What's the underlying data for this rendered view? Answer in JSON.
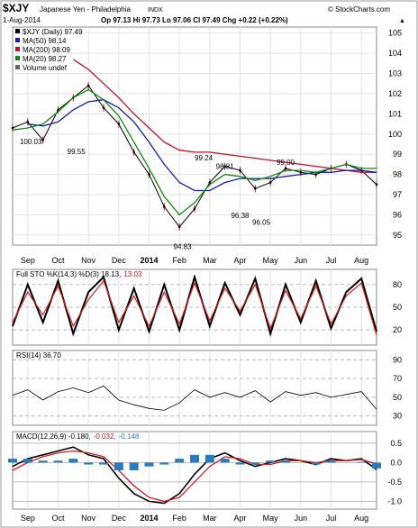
{
  "header": {
    "symbol": "$XJY",
    "name": "Japanese Yen - Philadelphia",
    "exchange": "INDX",
    "watermark": "© StockCharts.com",
    "date": "1-Aug-2014",
    "ohlc": "Op 97.13  Hi 97.73  Lo 97.06  Cl 97.49  Chg +0.22 (+0.22%)",
    "chg_up_symbol": "▲"
  },
  "price_panel": {
    "legend": [
      {
        "label": "$XJY (Daily) 97.49",
        "color": "#000000"
      },
      {
        "label": "MA(50) 98.14",
        "color": "#1a1ab0"
      },
      {
        "label": "MA(200) 98.09",
        "color": "#c0102a"
      },
      {
        "label": "MA(20) 98.27",
        "color": "#118a11"
      },
      {
        "label": "Volume undef",
        "color": "#666666"
      }
    ],
    "annotations": [
      {
        "label": "100.03",
        "x": 0.6,
        "y": 100.03
      },
      {
        "label": "99.55",
        "x": 2.1,
        "y": 99.55
      },
      {
        "label": "99.24",
        "x": 6.3,
        "y": 99.24
      },
      {
        "label": "98.81",
        "x": 7.0,
        "y": 98.81
      },
      {
        "label": "99.00",
        "x": 9.0,
        "y": 99.0
      },
      {
        "label": "96.38",
        "x": 7.5,
        "y": 96.38
      },
      {
        "label": "96.05",
        "x": 8.2,
        "y": 96.05
      },
      {
        "label": "94.83",
        "x": 5.6,
        "y": 94.83
      }
    ]
  },
  "sto_panel": {
    "label": "Full STO %K(14,3) %D(3) 18.13,",
    "value2": "13.03",
    "value2_color": "#c0102a"
  },
  "rsi_panel": {
    "label": "RSI(14) 36.70"
  },
  "macd_panel": {
    "label": "MACD(12,26,9) -0.180,",
    "value2": "-0.032,",
    "value2_color": "#c0102a",
    "value3": "-0.148",
    "value3_color": "#2a7bbd"
  },
  "x_axis": {
    "labels": [
      "Sep",
      "Oct",
      "Nov",
      "Dec",
      "2014",
      "Feb",
      "Mar",
      "Apr",
      "May",
      "Jun",
      "Jul",
      "Aug"
    ],
    "bold_index": 4
  },
  "chart_data": [
    {
      "type": "line",
      "title": "$XJY (Daily) 97.49",
      "ylim": [
        94.5,
        105.3
      ],
      "yticks": [
        95,
        96,
        97,
        98,
        99,
        100,
        101,
        102,
        103,
        104,
        105
      ],
      "x_month_index": [
        0.0,
        0.5,
        1.0,
        1.5,
        2.0,
        2.5,
        3.0,
        3.5,
        4.0,
        4.5,
        5.0,
        5.5,
        6.0,
        6.5,
        7.0,
        7.5,
        8.0,
        8.5,
        9.0,
        9.5,
        10.0,
        10.5,
        11.0,
        11.5,
        12.0
      ],
      "series": [
        {
          "name": "$XJY (Daily) 97.49",
          "values": [
            100.3,
            100.6,
            99.7,
            101.2,
            101.8,
            102.4,
            101.3,
            100.5,
            99.1,
            98.0,
            96.4,
            95.4,
            96.3,
            97.6,
            98.4,
            98.2,
            97.3,
            97.6,
            98.3,
            98.1,
            98.0,
            98.3,
            98.5,
            98.2,
            97.5
          ]
        },
        {
          "name": "MA(200) 98.09",
          "values": [
            null,
            null,
            null,
            null,
            103.7,
            103.2,
            102.5,
            101.8,
            101.0,
            100.3,
            99.6,
            99.2,
            99.1,
            99.1,
            99.0,
            98.9,
            98.8,
            98.7,
            98.6,
            98.5,
            98.4,
            98.3,
            98.2,
            98.1,
            98.1
          ]
        },
        {
          "name": "MA(50) 98.14",
          "values": [
            null,
            100.5,
            100.4,
            100.6,
            101.2,
            101.6,
            101.7,
            101.3,
            100.6,
            99.6,
            98.5,
            97.6,
            97.2,
            97.2,
            97.6,
            97.8,
            97.8,
            97.8,
            97.9,
            98.0,
            98.1,
            98.1,
            98.2,
            98.2,
            98.1
          ]
        },
        {
          "name": "MA(20) 98.27",
          "values": [
            100.2,
            100.3,
            100.5,
            101.1,
            101.8,
            102.2,
            101.7,
            100.9,
            99.6,
            98.3,
            96.9,
            96.0,
            96.6,
            97.5,
            98.0,
            97.9,
            97.7,
            97.9,
            98.2,
            98.2,
            98.1,
            98.3,
            98.5,
            98.3,
            98.3
          ]
        }
      ]
    },
    {
      "type": "line",
      "title": "Full STO %K(14,3) %D(3)",
      "ylim": [
        0,
        100
      ],
      "yticks": [
        20,
        50,
        80
      ],
      "series": [
        {
          "name": "%K",
          "values": [
            25,
            80,
            30,
            85,
            15,
            70,
            90,
            20,
            75,
            18,
            80,
            20,
            90,
            25,
            82,
            40,
            88,
            15,
            80,
            30,
            85,
            22,
            70,
            88,
            18
          ]
        },
        {
          "name": "%D",
          "values": [
            30,
            70,
            40,
            78,
            25,
            60,
            85,
            30,
            65,
            25,
            70,
            28,
            82,
            32,
            75,
            45,
            80,
            22,
            72,
            35,
            78,
            28,
            65,
            82,
            13
          ]
        }
      ]
    },
    {
      "type": "line",
      "title": "RSI(14)",
      "ylim": [
        20,
        100
      ],
      "yticks": [
        30,
        50,
        70,
        90
      ],
      "series": [
        {
          "name": "RSI(14) 36.70",
          "values": [
            52,
            58,
            47,
            56,
            60,
            55,
            62,
            47,
            42,
            38,
            36,
            44,
            58,
            50,
            55,
            50,
            57,
            45,
            56,
            52,
            55,
            50,
            53,
            56,
            37
          ]
        }
      ]
    },
    {
      "type": "line",
      "title": "MACD(12,26,9)",
      "ylim": [
        -1.2,
        0.8
      ],
      "yticks": [
        -1.0,
        -0.5,
        0.0,
        0.5
      ],
      "series": [
        {
          "name": "MACD -0.180",
          "values": [
            -0.1,
            0.1,
            0.2,
            0.3,
            0.4,
            0.2,
            0.1,
            -0.4,
            -0.8,
            -1.0,
            -1.05,
            -0.8,
            -0.3,
            0.1,
            0.25,
            0.05,
            -0.1,
            0.0,
            0.1,
            0.05,
            -0.05,
            0.1,
            0.05,
            0.1,
            -0.18
          ]
        },
        {
          "name": "Signal -0.032",
          "values": [
            -0.2,
            0.0,
            0.15,
            0.25,
            0.3,
            0.25,
            0.15,
            -0.2,
            -0.6,
            -0.9,
            -1.0,
            -0.9,
            -0.5,
            -0.1,
            0.15,
            0.1,
            -0.05,
            -0.05,
            0.05,
            0.05,
            0.0,
            0.05,
            0.05,
            0.08,
            -0.03
          ]
        },
        {
          "name": "Histogram -0.148",
          "values": [
            0.1,
            0.1,
            0.05,
            0.05,
            0.1,
            -0.05,
            -0.05,
            -0.2,
            -0.2,
            -0.1,
            -0.05,
            0.1,
            0.2,
            0.2,
            0.1,
            -0.05,
            -0.05,
            0.05,
            0.05,
            0.0,
            -0.05,
            0.05,
            0.0,
            0.02,
            -0.15
          ]
        }
      ]
    }
  ]
}
